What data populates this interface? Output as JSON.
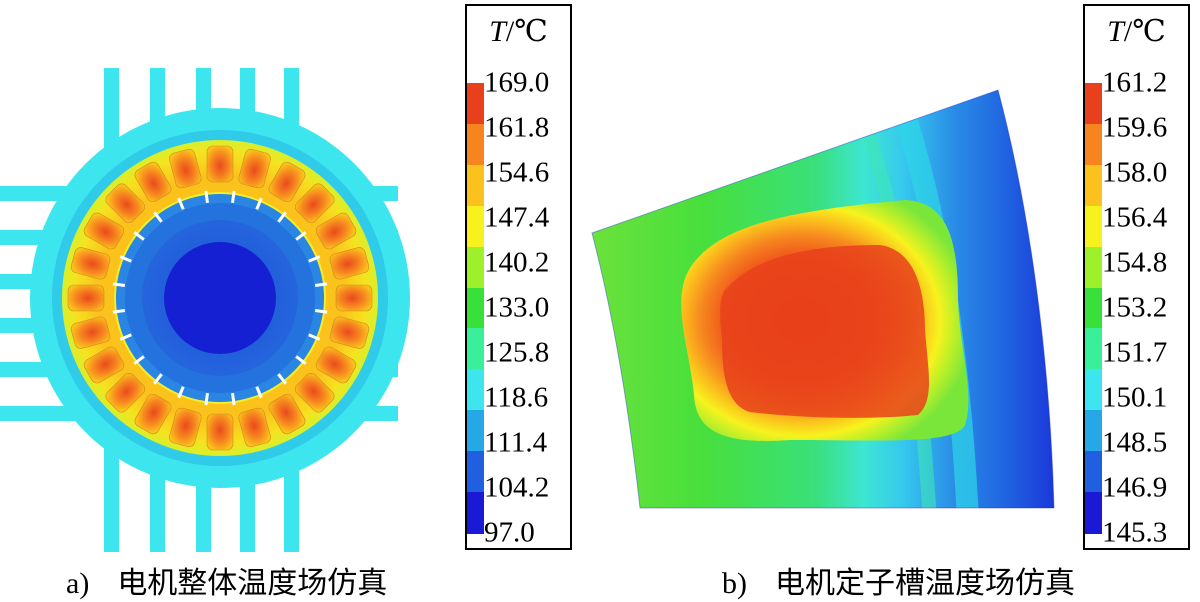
{
  "colors": {
    "scale": [
      "#1a1ad6",
      "#1f5fe0",
      "#27a8e6",
      "#3de6ef",
      "#39ef9a",
      "#39e03a",
      "#9ef02a",
      "#f7f21e",
      "#fbc11c",
      "#f6851f",
      "#e8401c"
    ]
  },
  "panel_a": {
    "caption_label": "a)",
    "caption_text": "电机整体温度场仿真",
    "legend": {
      "title_symbol": "T",
      "title_unit": "/℃",
      "ticks": [
        "169.0",
        "161.8",
        "154.6",
        "147.4",
        "140.2",
        "133.0",
        "125.8",
        "118.6",
        "111.4",
        "104.2",
        "97.0"
      ]
    }
  },
  "panel_b": {
    "caption_label": "b)",
    "caption_text": "电机定子槽温度场仿真",
    "legend": {
      "title_symbol": "T",
      "title_unit": "/℃",
      "ticks": [
        "161.2",
        "159.6",
        "158.0",
        "156.4",
        "154.8",
        "153.2",
        "151.7",
        "150.1",
        "148.5",
        "146.9",
        "145.3"
      ]
    }
  }
}
